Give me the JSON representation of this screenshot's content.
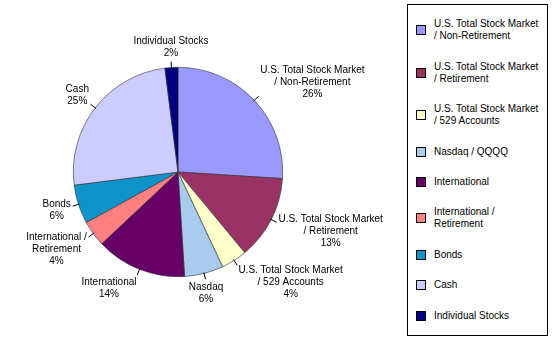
{
  "chart_data": {
    "type": "pie",
    "categories": [
      "U.S. Total Stock Market / Non-Retirement",
      "U.S. Total Stock Market / Retirement",
      "U.S. Total Stock Market / 529 Accounts",
      "Nasdaq / QQQQ",
      "International",
      "International / Retirement",
      "Bonds",
      "Cash",
      "Individual Stocks"
    ],
    "slice_labels": [
      "U.S. Total Stock Market / Non-Retirement",
      "U.S. Total Stock Market / Retirement",
      "U.S. Total Stock Market / 529 Accounts",
      "Nasdaq",
      "International",
      "International / Retirement",
      "Bonds",
      "Cash",
      "Individual Stocks"
    ],
    "values": [
      26,
      13,
      4,
      6,
      14,
      4,
      6,
      25,
      2
    ],
    "value_labels": [
      "26%",
      "13%",
      "4%",
      "6%",
      "14%",
      "4%",
      "6%",
      "25%",
      "2%"
    ],
    "colors": [
      "#9999ff",
      "#993366",
      "#ffffcc",
      "#a9ccee",
      "#660066",
      "#ff8080",
      "#1093c8",
      "#ccccff",
      "#000080"
    ],
    "data_labels": true,
    "legend": "right"
  }
}
